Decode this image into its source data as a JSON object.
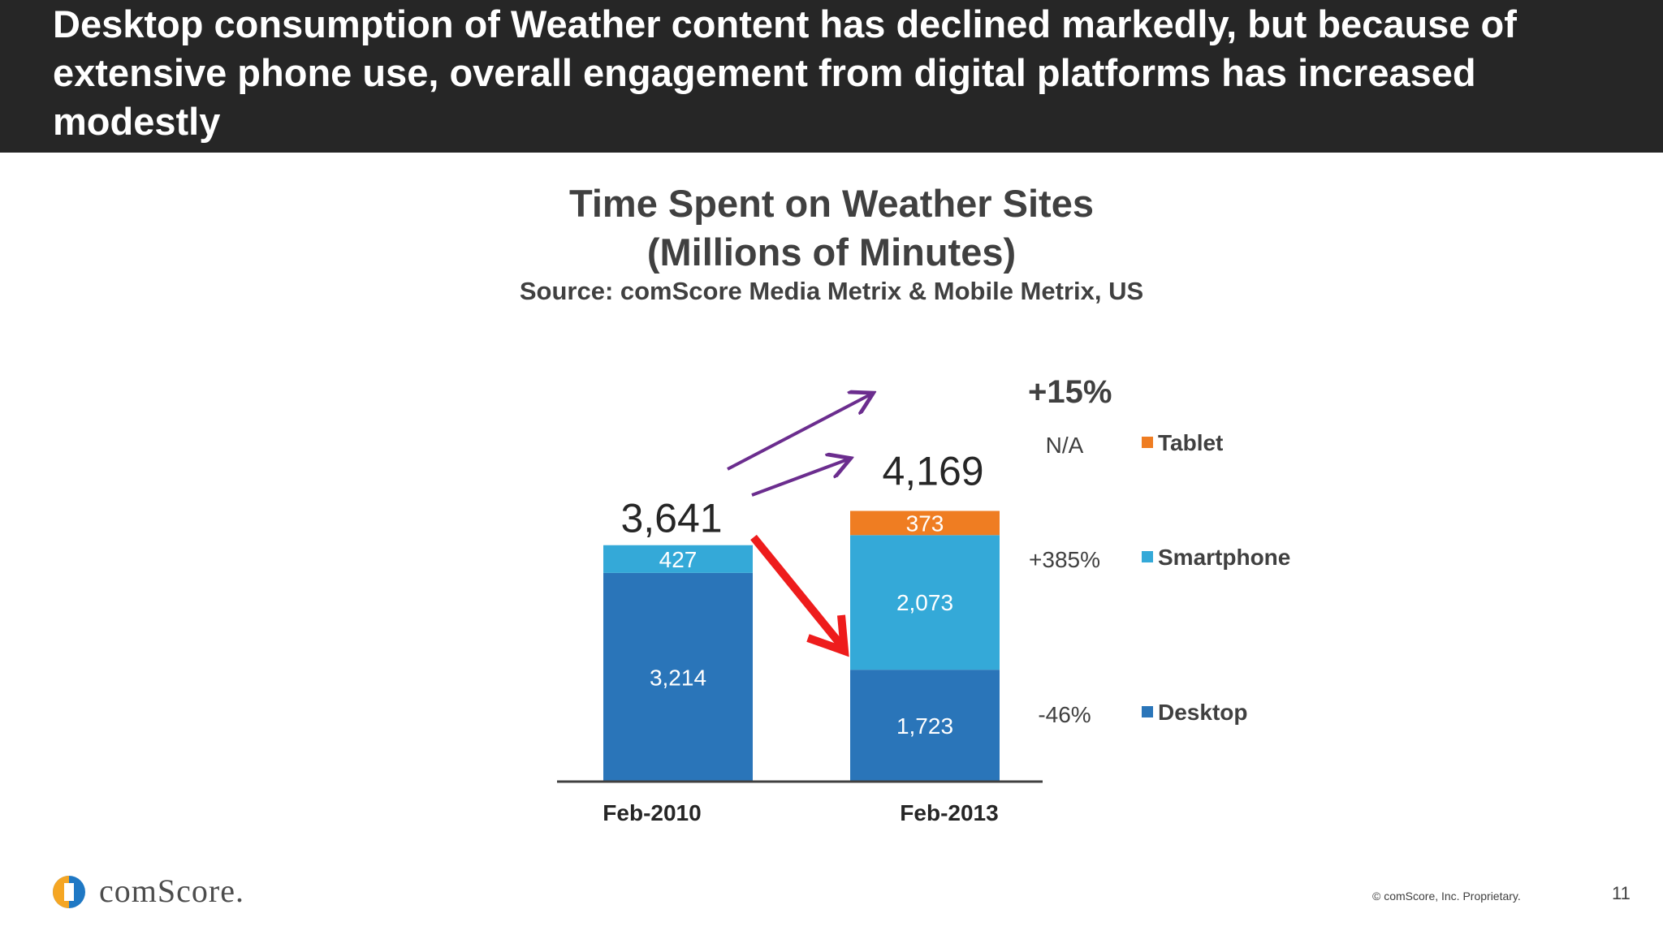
{
  "header": {
    "title": "Desktop consumption of Weather content has declined markedly, but because of extensive phone use, overall engagement from digital platforms has increased modestly"
  },
  "chart_data": {
    "type": "bar",
    "stacked": true,
    "title": "Time Spent on Weather Sites",
    "subtitle": "(Millions of Minutes)",
    "source": "Source: comScore Media Metrix & Mobile Metrix, US",
    "categories": [
      "Feb-2010",
      "Feb-2013"
    ],
    "series": [
      {
        "name": "Desktop",
        "values": [
          3214,
          1723
        ],
        "labels": [
          "3,214",
          "1,723"
        ],
        "color": "#2a75b9",
        "change": "-46%"
      },
      {
        "name": "Smartphone",
        "values": [
          427,
          2073
        ],
        "labels": [
          "427",
          "2,073"
        ],
        "color": "#34a9d8",
        "change": "+385%"
      },
      {
        "name": "Tablet",
        "values": [
          0,
          373
        ],
        "labels": [
          "",
          "373"
        ],
        "color": "#ef7d22",
        "change": "N/A"
      }
    ],
    "totals": [
      "3,641",
      "4,169"
    ],
    "total_change": "+15%",
    "ylim": [
      0,
      4500
    ],
    "legend_position": "right",
    "grid": false
  },
  "footer": {
    "logo_text": "comScore.",
    "copyright": "© comScore, Inc. Proprietary.",
    "page_number": "11"
  }
}
